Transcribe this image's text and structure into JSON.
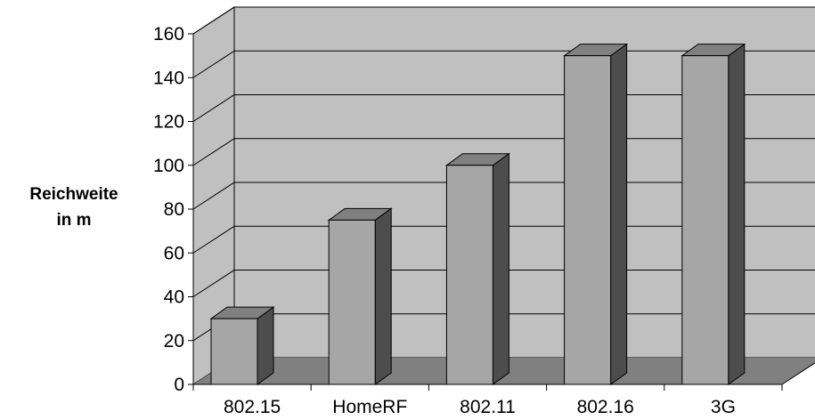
{
  "chart_data": {
    "type": "bar",
    "categories": [
      "802.15",
      "HomeRF",
      "802.11",
      "802.16",
      "3G"
    ],
    "values": [
      30,
      75,
      100,
      150,
      150
    ],
    "title": "",
    "xlabel": "",
    "ylabel": "Reichweite in m",
    "ylabel_lines": [
      "Reichweite",
      "in m"
    ],
    "ylim": [
      0,
      160
    ],
    "yticks": [
      0,
      20,
      40,
      60,
      80,
      100,
      120,
      140,
      160
    ],
    "grid": true,
    "style": "3d-column",
    "colors": {
      "bar_front": "#a6a6a6",
      "bar_side": "#4d4d4d",
      "bar_top": "#808080",
      "wall": "#c0c0c0",
      "floor": "#808080"
    }
  }
}
